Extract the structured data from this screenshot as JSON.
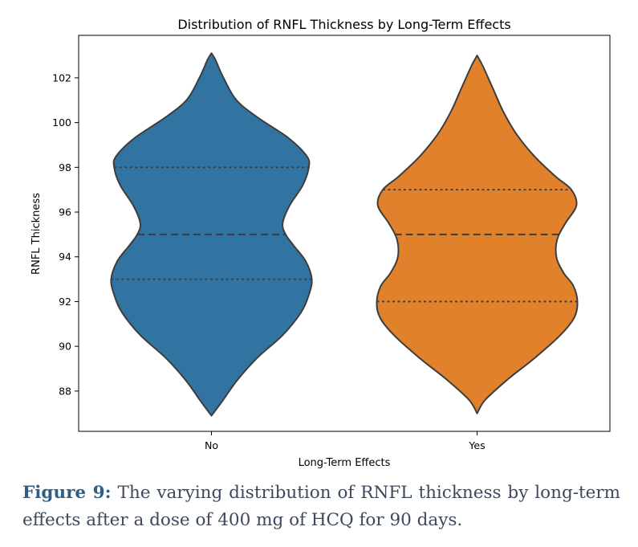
{
  "chart_data": {
    "type": "violin",
    "title": "Distribution of RNFL Thickness by Long-Term Effects",
    "xlabel": "Long-Term Effects",
    "ylabel": "RNFL Thickness",
    "categories": [
      "No",
      "Yes"
    ],
    "yticks": [
      88,
      90,
      92,
      94,
      96,
      98,
      100,
      102
    ],
    "ylim": [
      86.2,
      103.9
    ],
    "colors": [
      "#3274a1",
      "#e1812c"
    ],
    "series": [
      {
        "category": "No",
        "min": 86.9,
        "max": 103.1,
        "quartiles": [
          93,
          95,
          98
        ],
        "density": [
          [
            86.9,
            0.0
          ],
          [
            87.5,
            0.1
          ],
          [
            88.5,
            0.26
          ],
          [
            89.5,
            0.46
          ],
          [
            90.5,
            0.71
          ],
          [
            91.5,
            0.89
          ],
          [
            92.3,
            0.97
          ],
          [
            93.0,
            1.0
          ],
          [
            93.8,
            0.94
          ],
          [
            94.5,
            0.82
          ],
          [
            95.0,
            0.74
          ],
          [
            95.5,
            0.71
          ],
          [
            96.3,
            0.78
          ],
          [
            97.2,
            0.91
          ],
          [
            98.0,
            0.97
          ],
          [
            98.5,
            0.95
          ],
          [
            99.3,
            0.77
          ],
          [
            100.2,
            0.47
          ],
          [
            101.0,
            0.25
          ],
          [
            102.0,
            0.12
          ],
          [
            102.8,
            0.04
          ],
          [
            103.1,
            0.0
          ]
        ]
      },
      {
        "category": "Yes",
        "min": 87.0,
        "max": 103.0,
        "quartiles": [
          92,
          95,
          97
        ],
        "density": [
          [
            87.0,
            0.0
          ],
          [
            87.6,
            0.08
          ],
          [
            88.5,
            0.3
          ],
          [
            89.5,
            0.58
          ],
          [
            90.5,
            0.83
          ],
          [
            91.3,
            0.97
          ],
          [
            92.0,
            1.0
          ],
          [
            92.7,
            0.96
          ],
          [
            93.3,
            0.86
          ],
          [
            94.0,
            0.79
          ],
          [
            94.8,
            0.8
          ],
          [
            95.5,
            0.88
          ],
          [
            96.3,
            0.99
          ],
          [
            97.0,
            0.94
          ],
          [
            97.6,
            0.78
          ],
          [
            98.5,
            0.57
          ],
          [
            99.5,
            0.39
          ],
          [
            100.5,
            0.26
          ],
          [
            101.5,
            0.16
          ],
          [
            102.5,
            0.06
          ],
          [
            103.0,
            0.0
          ]
        ]
      }
    ]
  },
  "caption": {
    "label": "Figure 9:",
    "text": " The varying distribution of RNFL thickness by long-term effects after a dose of 400 mg of HCQ for 90 days."
  }
}
